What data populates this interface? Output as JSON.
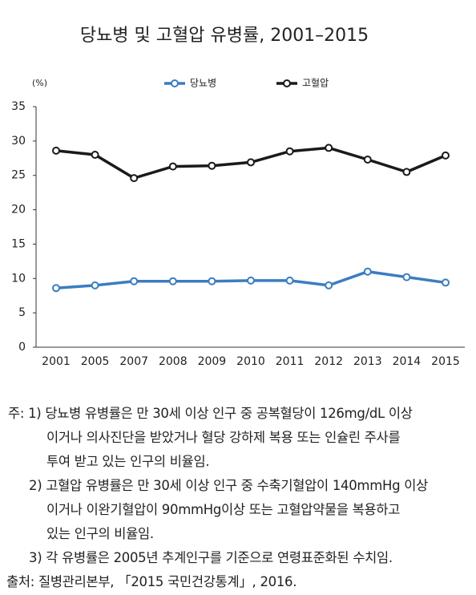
{
  "chart_data": {
    "type": "line",
    "title": "당뇨병 및 고혈압 유병률, 2001–2015",
    "y_unit": "(%)",
    "categories": [
      "2001",
      "2005",
      "2007",
      "2008",
      "2009",
      "2010",
      "2011",
      "2012",
      "2013",
      "2014",
      "2015"
    ],
    "series": [
      {
        "name": "당뇨병",
        "color": "#3b7dbf",
        "values": [
          8.6,
          9.0,
          9.6,
          9.6,
          9.6,
          9.7,
          9.7,
          9.0,
          11.0,
          10.2,
          9.4
        ]
      },
      {
        "name": "고혈압",
        "color": "#1a1a1a",
        "values": [
          28.6,
          28.0,
          24.6,
          26.3,
          26.4,
          26.9,
          28.5,
          29.0,
          27.3,
          25.5,
          27.9
        ]
      }
    ],
    "ylim": [
      0,
      35
    ],
    "yticks": [
      0,
      5,
      10,
      15,
      20,
      25,
      30,
      35
    ],
    "grid": false,
    "legend": "top"
  },
  "notes": [
    "주: 1) 당뇨병 유병률은 만 30세 이상 인구 중 공복혈당이 126mg/dL 이상",
    "이거나 의사진단을 받았거나 혈당 강하제 복용 또는 인슐린 주사를",
    "투여 받고 있는 인구의 비율임.",
    "2) 고혈압 유병률은 만 30세 이상 인구 중 수축기혈압이 140mmHg 이상",
    "이거나 이완기혈압이 90mmHg이상 또는 고혈압약물을 복용하고",
    "있는 인구의 비율임.",
    "3) 각 유병률은 2005년 추계인구를 기준으로 연령표준화된 수치임.",
    "출처: 질병관리본부, 「2015 국민건강통계」, 2016."
  ]
}
